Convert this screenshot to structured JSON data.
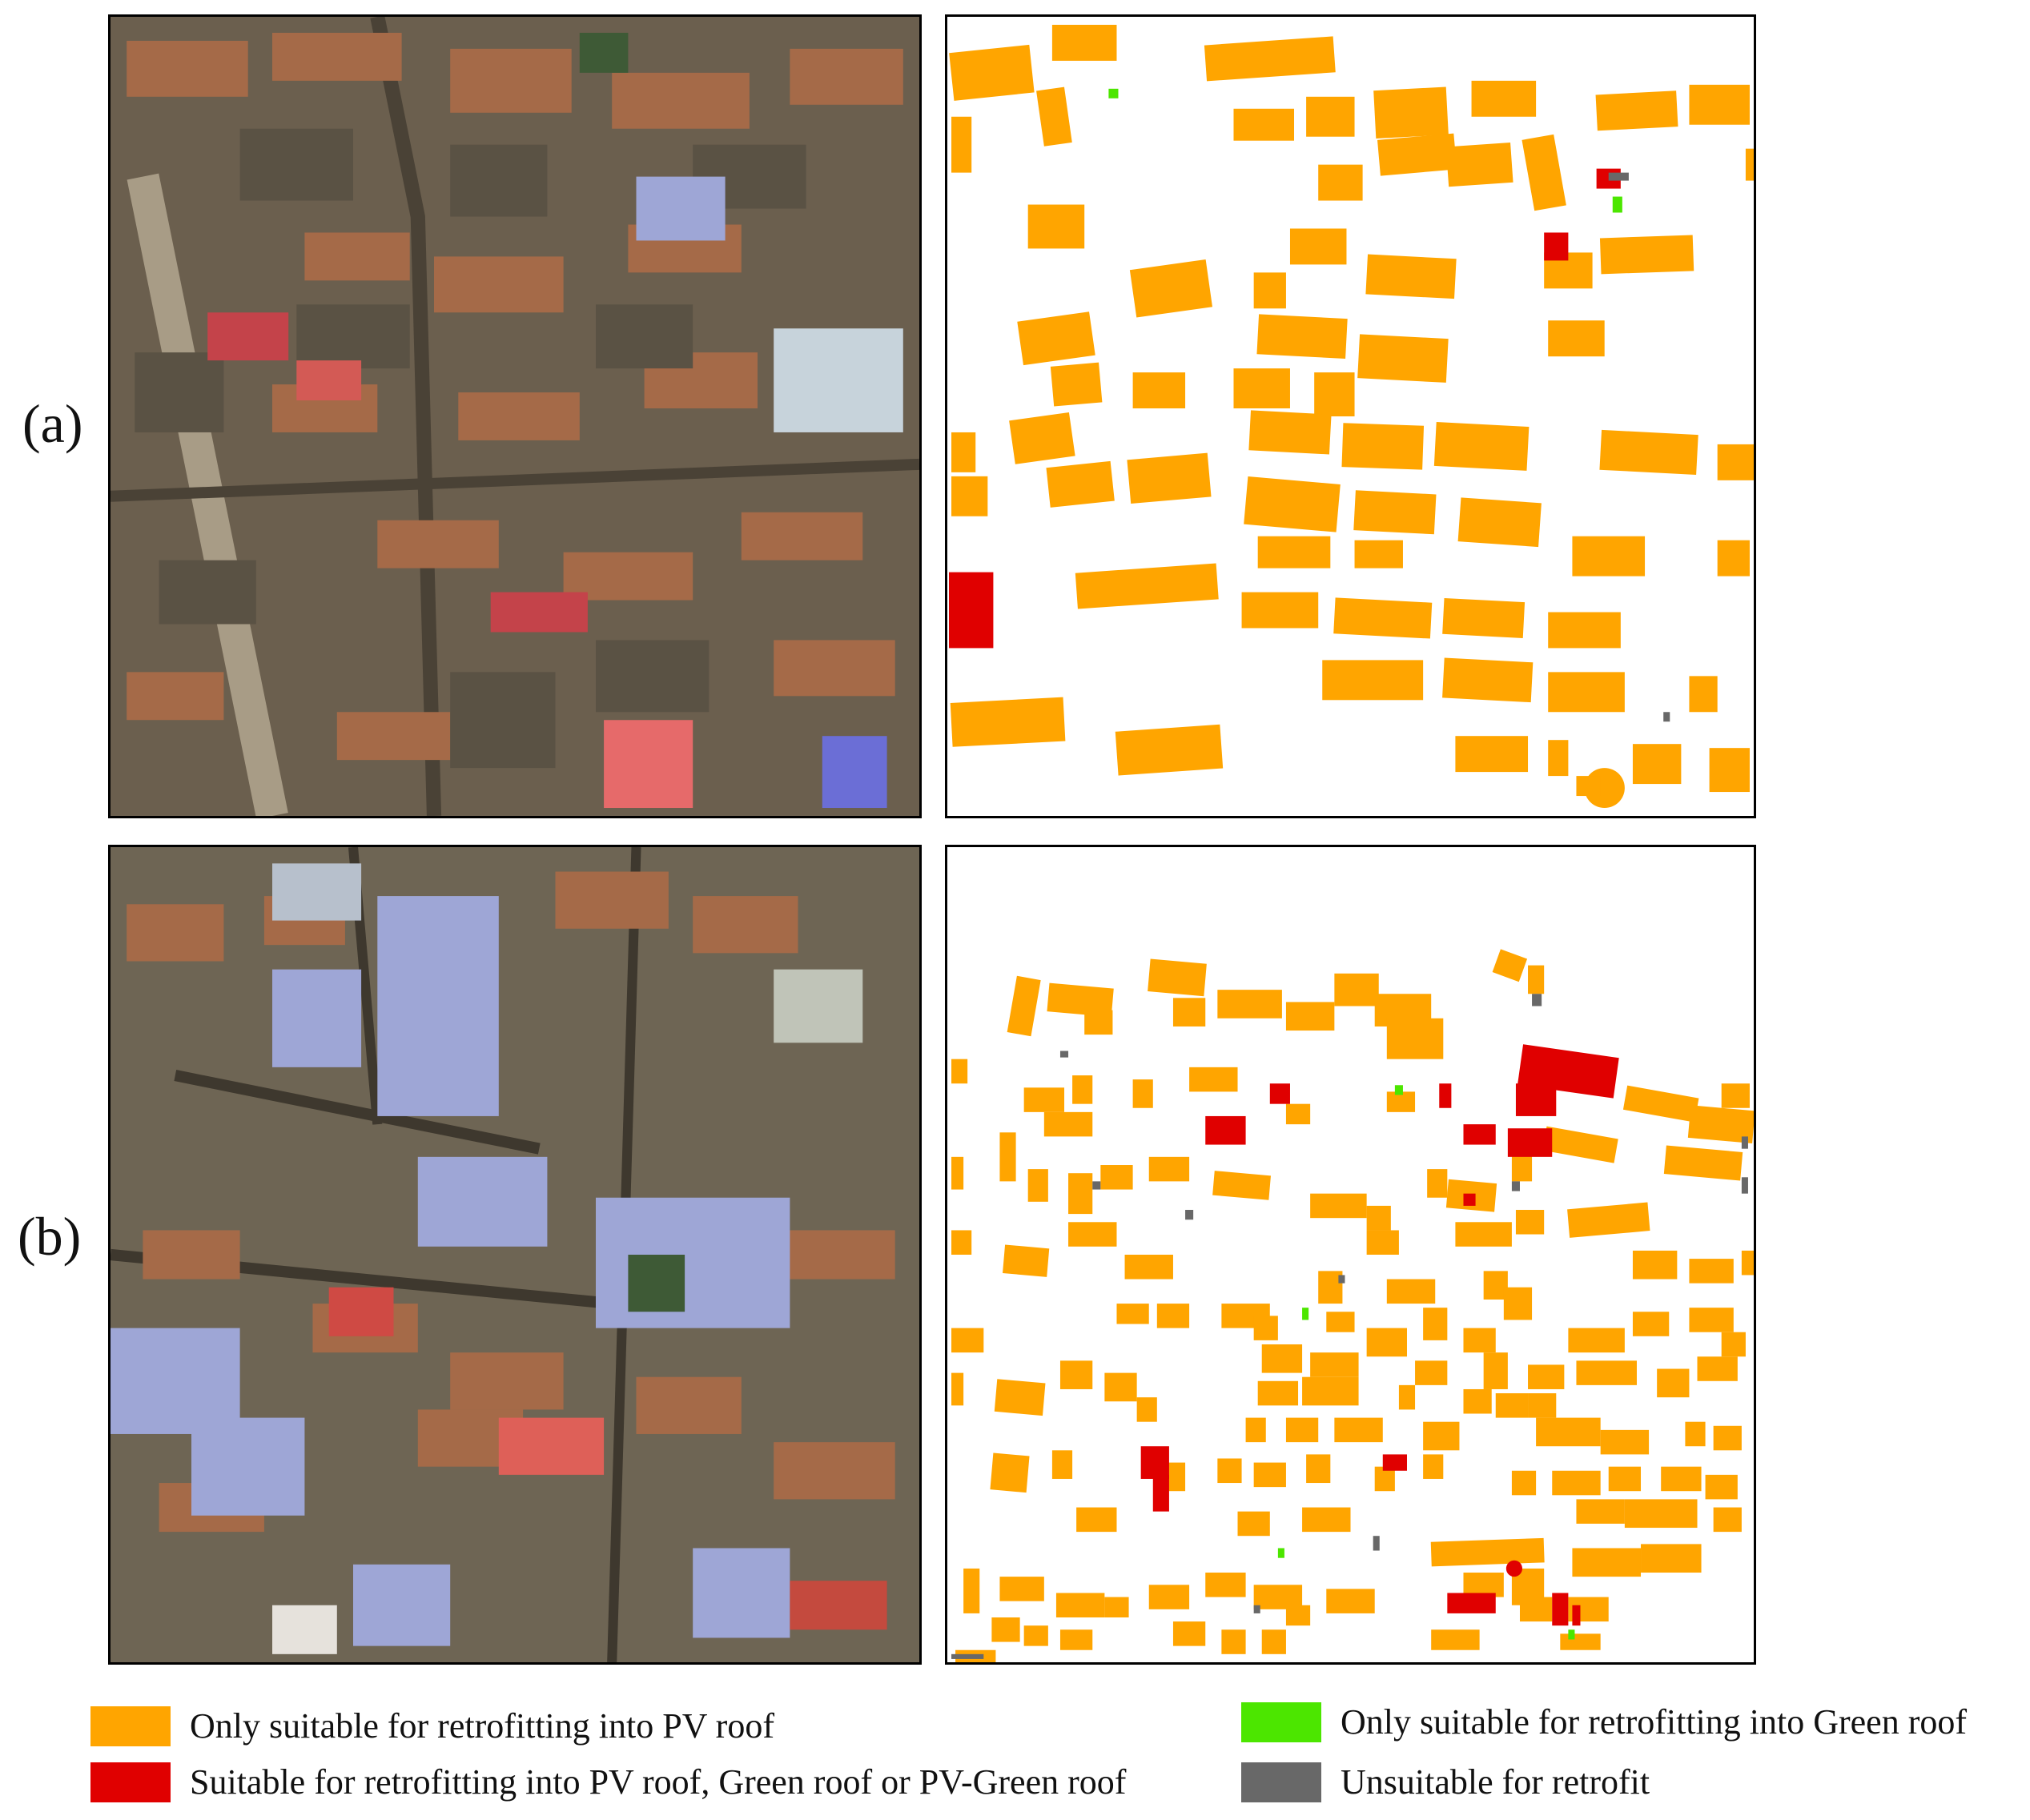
{
  "figure": {
    "panels": [
      {
        "label": "(a)"
      },
      {
        "label": "(b)"
      }
    ]
  },
  "legend": {
    "items": [
      {
        "key": "pv_only",
        "label": "Only suitable for retrofitting into PV roof",
        "color": "#FFA500"
      },
      {
        "key": "all_options",
        "label": "Suitable for retrofitting into PV roof, Green roof or PV-Green roof",
        "color": "#E00000"
      },
      {
        "key": "green_only",
        "label": "Only suitable for retrofitting into Green roof",
        "color": "#4CE600"
      },
      {
        "key": "unsuitable",
        "label": "Unsuitable for retrofit",
        "color": "#686868"
      }
    ]
  },
  "images": {
    "a_photo": "aerial-imagery-dense-rooftops",
    "a_map": "roof-retrofit-classification-map",
    "b_photo": "aerial-imagery-dense-rooftops",
    "b_map": "roof-retrofit-classification-map"
  }
}
